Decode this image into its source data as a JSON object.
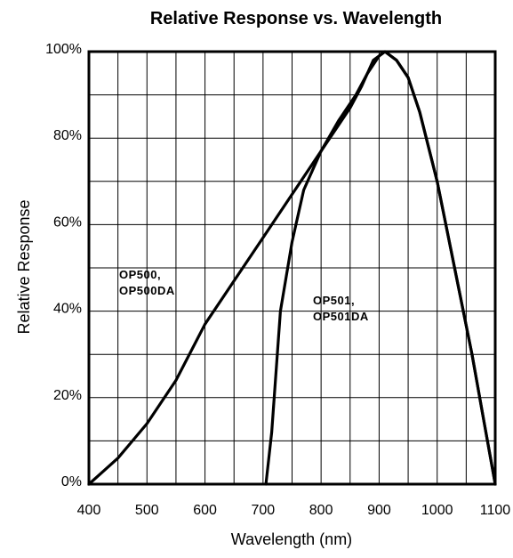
{
  "chart_data": {
    "type": "line",
    "title": "Relative Response vs. Wavelength",
    "xlabel": "Wavelength (nm)",
    "ylabel": "Relative Response",
    "xlim": [
      400,
      1100
    ],
    "ylim": [
      0,
      100
    ],
    "x_ticks": [
      "400",
      "500",
      "600",
      "700",
      "800",
      "900",
      "1000",
      "1100"
    ],
    "y_ticks": [
      "0%",
      "20%",
      "40%",
      "60%",
      "80%",
      "100%"
    ],
    "grid": true,
    "series": [
      {
        "name": "OP500, OP500DA",
        "label_lines": [
          "OP500,",
          "OP500DA"
        ],
        "x": [
          400,
          425,
          450,
          475,
          500,
          550,
          600,
          650,
          700,
          750,
          800,
          850,
          870,
          890,
          910,
          930,
          950,
          970,
          1000,
          1030,
          1060,
          1080,
          1100
        ],
        "y": [
          0,
          3,
          6,
          10,
          14,
          24,
          37,
          47,
          57,
          67,
          77,
          87,
          92,
          98,
          100,
          98,
          94,
          86,
          70,
          50,
          30,
          15,
          0
        ]
      },
      {
        "name": "OP501, OP501DA",
        "label_lines": [
          "OP501,",
          "OP501DA"
        ],
        "x": [
          705,
          715,
          730,
          750,
          770,
          800,
          830,
          860,
          880,
          900,
          910,
          930,
          950,
          970,
          1000,
          1030,
          1060,
          1080,
          1100
        ],
        "y": [
          0,
          12,
          40,
          56,
          68,
          77,
          84,
          90,
          95,
          99,
          100,
          98,
          94,
          86,
          70,
          50,
          30,
          15,
          0
        ]
      }
    ]
  }
}
